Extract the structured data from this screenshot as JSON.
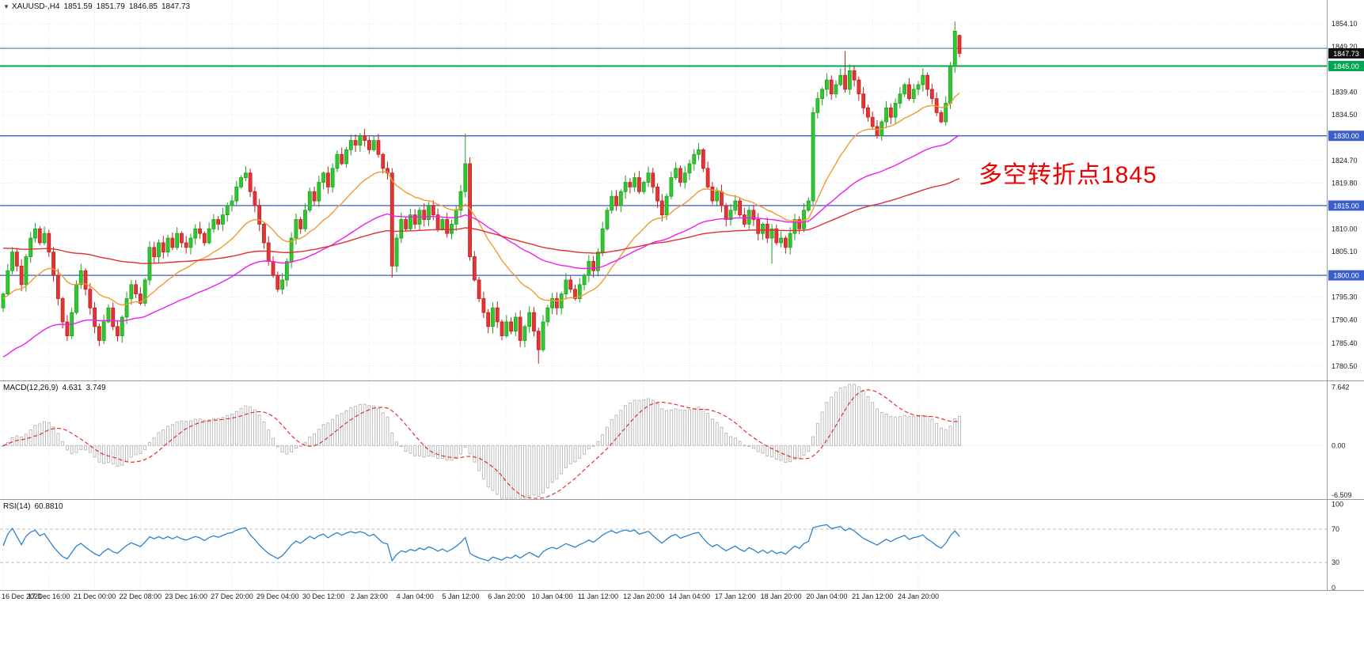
{
  "header": {
    "dropdown_icon": "▼",
    "symbol": "XAUUSD-,H4",
    "open": "1851.59",
    "high": "1851.79",
    "low": "1846.85",
    "close": "1847.73"
  },
  "annotation": {
    "text": "多空转折点1845",
    "color": "#ee0000"
  },
  "price_axis": {
    "visible_labels": [
      "1854.10",
      "1849.20",
      "1839.40",
      "1834.50",
      "1824.70",
      "1819.80",
      "1810.00",
      "1805.10",
      "1795.30",
      "1790.40",
      "1785.40",
      "1780.50"
    ]
  },
  "quote_badge": {
    "text": "1847.73",
    "price": 1847.73,
    "bg": "#111111",
    "fg": "#ffffff"
  },
  "macd": {
    "label": "MACD(12,26,9)",
    "main_value": "4.631",
    "signal_value": "3.749",
    "axis_labels": [
      "7.642",
      "0.00",
      "-6.509"
    ]
  },
  "rsi": {
    "label": "RSI(14)",
    "value": "60.8810",
    "axis_labels": [
      "100",
      "70",
      "30",
      "0"
    ]
  },
  "colors": {
    "up": "#2fc92f",
    "up_stroke": "#1ea01e",
    "down": "#e43535",
    "down_stroke": "#c41f1f",
    "grid": "#e6e6e6",
    "separator": "#9a9a9a",
    "axis_text": "#1a1a1a",
    "macd_hist": "#b5b5b5",
    "macd_signal": "#dd2222",
    "rsi_line": "#2f81c9"
  },
  "chart_data": {
    "type": "candlestick",
    "symbol": "XAUUSD-",
    "timeframe": "H4",
    "title": "XAUUSD-,H4 1851.59 1851.79 1846.85 1847.73",
    "y_axis": {
      "top_price": 1859.2,
      "bottom_price": 1777.4,
      "grid_top": 1854.1,
      "grid_step": 4.9,
      "grid_count": 16
    },
    "time_labels": [
      "16 Dec 2021",
      "17 Dec 16:00",
      "21 Dec 00:00",
      "22 Dec 08:00",
      "23 Dec 16:00",
      "27 Dec 20:00",
      "29 Dec 04:00",
      "30 Dec 12:00",
      "2 Jan 23:00",
      "4 Jan 04:00",
      "5 Jan 12:00",
      "6 Jan 20:00",
      "10 Jan 04:00",
      "11 Jan 12:00",
      "12 Jan 20:00",
      "14 Jan 04:00",
      "17 Jan 12:00",
      "18 Jan 20:00",
      "20 Jan 04:00",
      "21 Jan 12:00",
      "24 Jan 20:00"
    ],
    "candles_per_label": 10,
    "closes": [
      1796,
      1801,
      1805,
      1802,
      1798,
      1804,
      1808,
      1810,
      1807,
      1809,
      1805,
      1800,
      1795,
      1790,
      1787,
      1792,
      1798,
      1801,
      1797,
      1793,
      1789,
      1786,
      1790,
      1793,
      1789,
      1787,
      1791,
      1795,
      1798,
      1796,
      1794,
      1799,
      1806,
      1804,
      1807,
      1805,
      1808,
      1806,
      1809,
      1807,
      1806,
      1808,
      1810,
      1809,
      1807,
      1810,
      1812,
      1811,
      1813,
      1815,
      1816,
      1819,
      1821,
      1822,
      1818,
      1815,
      1811,
      1807,
      1803,
      1800,
      1797,
      1799,
      1803,
      1808,
      1812,
      1810,
      1814,
      1818,
      1816,
      1820,
      1822,
      1819,
      1823,
      1826,
      1824,
      1827,
      1829,
      1828,
      1830,
      1829,
      1827,
      1829,
      1826,
      1823,
      1822,
      1802,
      1808,
      1812,
      1810,
      1813,
      1811,
      1814,
      1812,
      1815,
      1813,
      1810,
      1812,
      1809,
      1811,
      1814,
      1818,
      1824,
      1804,
      1799,
      1795,
      1792,
      1789,
      1793,
      1790,
      1787,
      1790,
      1788,
      1791,
      1786,
      1789,
      1792,
      1788,
      1784,
      1790,
      1793,
      1795,
      1793,
      1796,
      1799,
      1797,
      1795,
      1798,
      1800,
      1803,
      1801,
      1805,
      1810,
      1814,
      1817,
      1815,
      1818,
      1820,
      1819,
      1821,
      1818,
      1820,
      1822,
      1819,
      1816,
      1813,
      1817,
      1821,
      1823,
      1820,
      1822,
      1824,
      1826,
      1827,
      1823,
      1819,
      1816,
      1818,
      1815,
      1812,
      1814,
      1816,
      1813,
      1811,
      1814,
      1812,
      1809,
      1811,
      1808,
      1810,
      1807,
      1808,
      1806,
      1809,
      1812,
      1810,
      1814,
      1816,
      1835,
      1838,
      1840,
      1842,
      1839,
      1841,
      1843,
      1840,
      1844,
      1842,
      1839,
      1836,
      1834,
      1832,
      1830,
      1833,
      1836,
      1834,
      1837,
      1839,
      1841,
      1838,
      1840,
      1841,
      1843,
      1840,
      1838,
      1835,
      1833,
      1837,
      1845,
      1852.5,
      1847.73
    ],
    "last_candle": {
      "o": 1851.59,
      "h": 1851.79,
      "l": 1846.85,
      "c": 1847.73
    },
    "wick_overrides": {
      "85": {
        "l": 1799.5
      },
      "101": {
        "h": 1830.5
      },
      "117": {
        "l": 1781.0
      },
      "168": {
        "l": 1802.5
      },
      "184": {
        "h": 1848.2
      },
      "208": {
        "h": 1854.6
      }
    },
    "ma_lines": [
      {
        "name": "ma-fast-orange",
        "color": "#f29a2e",
        "period": 21,
        "seed": 1795
      },
      {
        "name": "ma-mid-magenta",
        "color": "#f01df0",
        "period": 60,
        "seed": 1782
      },
      {
        "name": "ma-slow-red",
        "color": "#e03030",
        "period": 140,
        "seed": 1806
      }
    ],
    "horizontal_lines": [
      {
        "name": "resistance-line-1849",
        "price": 1848.8,
        "color": "#5b87bf",
        "width": 1.2,
        "badge": null
      },
      {
        "name": "pivot-line-1845",
        "price": 1845.0,
        "color": "#00a651",
        "width": 2,
        "badge": "1845.00"
      },
      {
        "name": "level-line-1830",
        "price": 1830.0,
        "color": "#3a5fcd",
        "width": 1.3,
        "badge": "1830.00"
      },
      {
        "name": "level-line-1815",
        "price": 1815.0,
        "color": "#3a5fcd",
        "width": 1.3,
        "badge": "1815.00"
      },
      {
        "name": "level-line-1800",
        "price": 1800.0,
        "color": "#3a5fcd",
        "width": 1.3,
        "badge": "1800.00"
      }
    ],
    "indicators": {
      "macd": {
        "fast": 12,
        "slow": 26,
        "signal": 9,
        "last_main": 4.631,
        "last_signal": 3.749,
        "range": {
          "max": 8.4,
          "min": -7.0
        }
      },
      "rsi": {
        "period": 14,
        "last": 60.881,
        "levels": [
          70,
          30
        ],
        "range": {
          "max": 105,
          "min": -3
        }
      }
    }
  }
}
